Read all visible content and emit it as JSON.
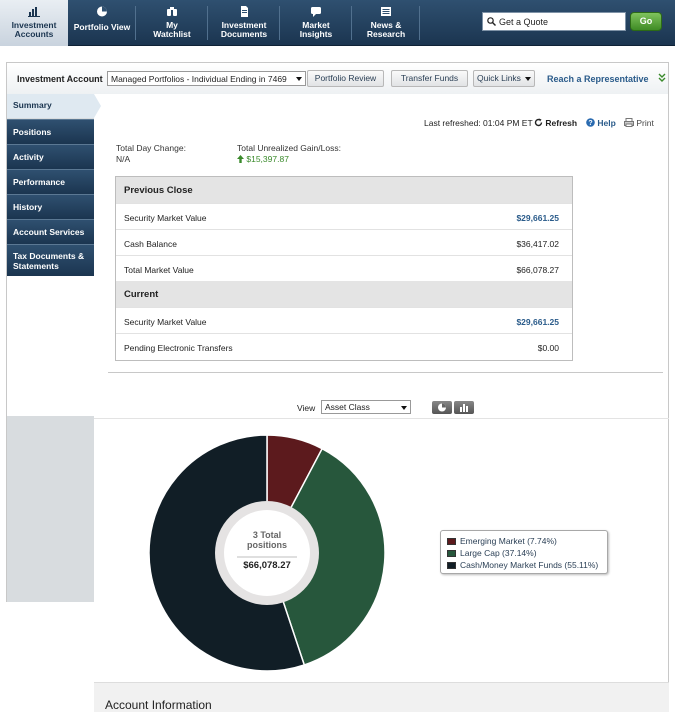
{
  "nav": {
    "tabs": [
      {
        "label": "Investment Accounts",
        "icon": "bar-chart-icon",
        "active": true
      },
      {
        "label": "Portfolio View",
        "icon": "pie-chart-icon"
      },
      {
        "label": "My Watchlist",
        "icon": "binoculars-icon"
      },
      {
        "label": "Investment Documents",
        "icon": "document-icon"
      },
      {
        "label": "Market Insights",
        "icon": "speech-bubble-icon"
      },
      {
        "label": "News & Research",
        "icon": "newspaper-icon"
      }
    ],
    "quote_placeholder": "Get a Quote",
    "go_label": "Go"
  },
  "account_bar": {
    "label": "Investment Account",
    "selected_account": "Managed Portfolios - Individual Ending in 7469",
    "portfolio_review": "Portfolio Review",
    "transfer_funds": "Transfer Funds",
    "quick_links": "Quick Links",
    "reach_rep": "Reach a Representative"
  },
  "sidebar": {
    "items": [
      {
        "label": "Summary",
        "active": true
      },
      {
        "label": "Positions"
      },
      {
        "label": "Activity"
      },
      {
        "label": "Performance"
      },
      {
        "label": "History"
      },
      {
        "label": "Account Services"
      },
      {
        "label": "Tax Documents & Statements"
      }
    ]
  },
  "summary": {
    "last_refreshed": "Last refreshed: 01:04 PM ET",
    "refresh": "Refresh",
    "help": "Help",
    "print": "Print",
    "day_change_label": "Total Day Change:",
    "day_change_value": "N/A",
    "unrealized_label": "Total Unrealized Gain/Loss:",
    "unrealized_value": "$15,397.87",
    "previous_close": {
      "title": "Previous Close",
      "rows": [
        {
          "name": "Security Market Value",
          "value": "$29,661.25",
          "link": true
        },
        {
          "name": "Cash Balance",
          "value": "$36,417.02"
        },
        {
          "name": "Total Market Value",
          "value": "$66,078.27"
        }
      ]
    },
    "current": {
      "title": "Current",
      "rows": [
        {
          "name": "Security Market Value",
          "value": "$29,661.25",
          "link": true
        },
        {
          "name": "Pending Electronic Transfers",
          "value": "$0.00"
        }
      ]
    }
  },
  "chart_controls": {
    "view_label": "View",
    "view_selected": "Asset Class"
  },
  "chart_data": {
    "type": "pie",
    "center_count": "3 Total positions",
    "center_value": "$66,078.27",
    "slices": [
      {
        "label": "Emerging Market (7.74%)",
        "value": 7.74,
        "color": "#5c1a1d"
      },
      {
        "label": "Large Cap (37.14%)",
        "value": 37.14,
        "color": "#27573c"
      },
      {
        "label": "Cash/Money Market Funds (55.11%)",
        "value": 55.11,
        "color": "#111e26"
      }
    ],
    "legend_position": "right"
  },
  "footer": {
    "account_info": "Account Information"
  }
}
